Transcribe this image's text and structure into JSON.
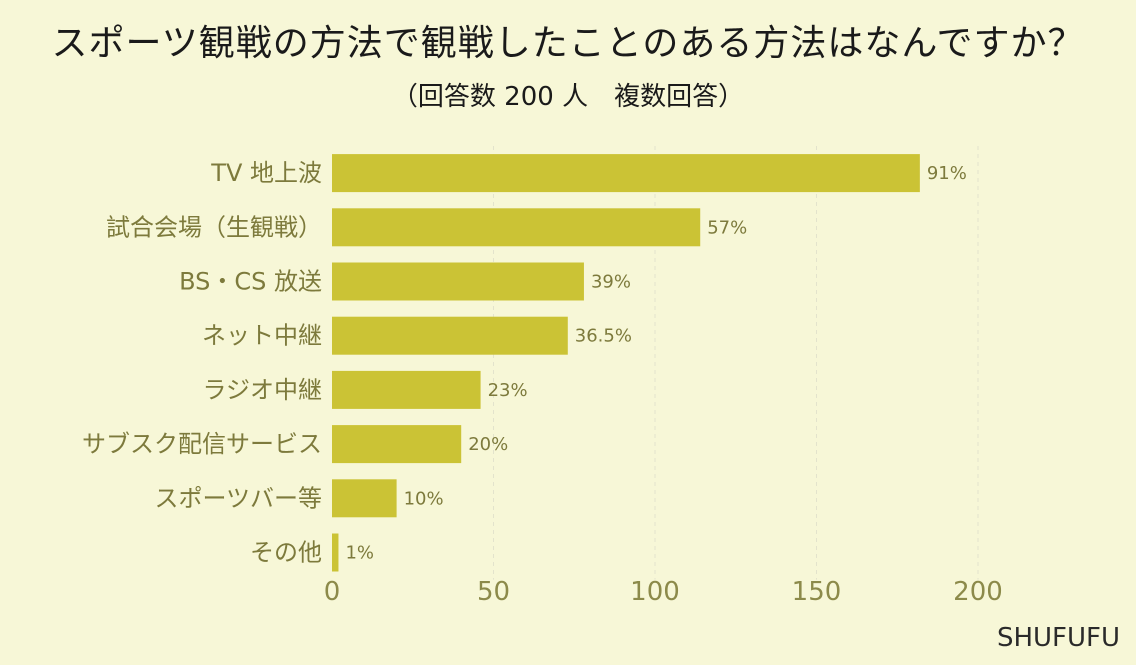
{
  "brand": "SHUFUFU",
  "colors": {
    "background": "#f7f7d7",
    "bar": "#cbc335",
    "text": "#7d7a3c",
    "grid": "#e3e3cc"
  },
  "chart_data": {
    "type": "bar",
    "orientation": "horizontal",
    "title": "スポーツ観戦の方法で観戦したことのある方法はなんですか？",
    "subtitle": "（回答数 200 人　複数回答）",
    "categories": [
      "TV 地上波",
      "試合会場（生観戦）",
      "BS・CS 放送",
      "ネット中継",
      "ラジオ中継",
      "サブスク配信サービス",
      "スポーツバー等",
      "その他"
    ],
    "values": [
      182,
      114,
      78,
      73,
      46,
      40,
      20,
      2
    ],
    "value_labels": [
      "91%",
      "57%",
      "39%",
      "36.5%",
      "23%",
      "20%",
      "10%",
      "1%"
    ],
    "xlim": [
      0,
      200
    ],
    "xticks": [
      "0",
      "50",
      "100",
      "150",
      "200"
    ],
    "grid": true,
    "legend": "none"
  }
}
